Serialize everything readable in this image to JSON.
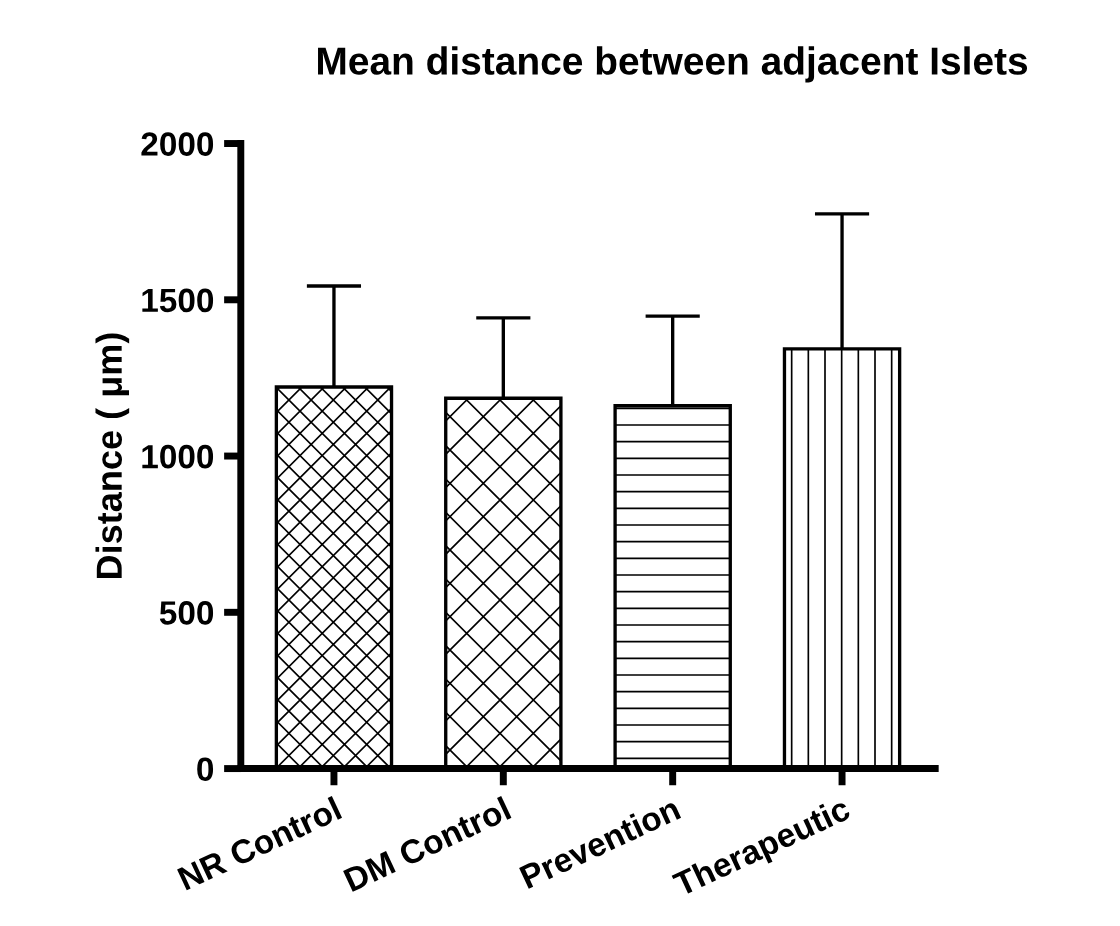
{
  "chart_data": {
    "type": "bar",
    "title": "Mean distance between adjacent Islets",
    "ylabel": "Distance ( μm)",
    "categories": [
      "NR Control",
      "DM Control",
      "Prevention",
      "Therapeutic"
    ],
    "values": [
      1221,
      1185,
      1161,
      1343
    ],
    "errors": [
      [
        1221,
        1544
      ],
      [
        1185,
        1442
      ],
      [
        1161,
        1448
      ],
      [
        1343,
        1775
      ]
    ],
    "colors": [
      "#ffffff",
      "#ffffff",
      "#ffffff",
      "#ffffff"
    ],
    "ylim": [
      0,
      2000
    ],
    "yticks": [
      0,
      500,
      1000,
      1500,
      2000
    ],
    "grid": false,
    "legend": false
  }
}
